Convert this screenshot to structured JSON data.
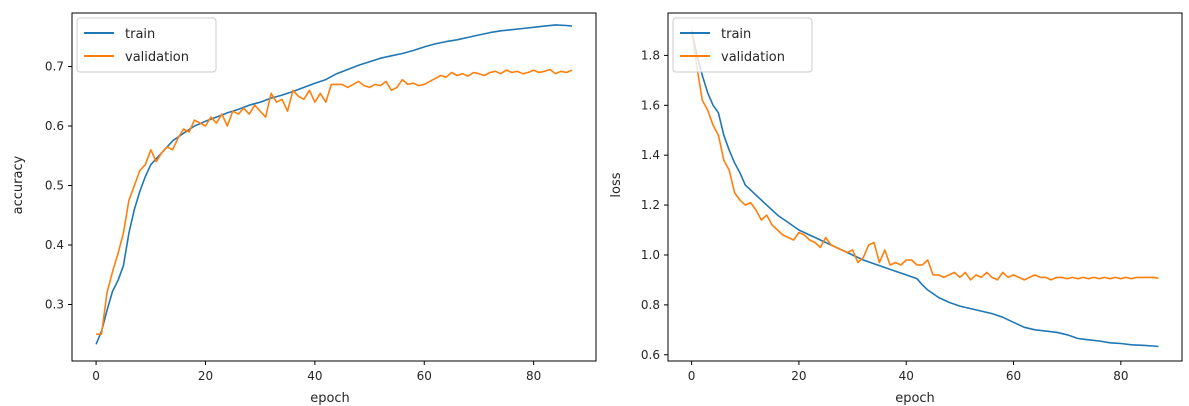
{
  "colors": {
    "train": "#1f77b4",
    "validation": "#ff7f0e"
  },
  "chart_data": [
    {
      "type": "line",
      "xlabel": "epoch",
      "ylabel": "accuracy",
      "xlim": [
        -4.4,
        91.4
      ],
      "ylim": [
        0.205,
        0.79
      ],
      "xticks": [
        0,
        20,
        40,
        60,
        80
      ],
      "yticks": [
        0.3,
        0.4,
        0.5,
        0.6,
        0.7
      ],
      "ytick_labels": [
        "0.3",
        "0.4",
        "0.5",
        "0.6",
        "0.7"
      ],
      "legend_position": "upper left",
      "grid": false,
      "series": [
        {
          "name": "train",
          "x": [
            0,
            1,
            2,
            3,
            4,
            5,
            6,
            7,
            8,
            9,
            10,
            12,
            14,
            16,
            18,
            20,
            22,
            24,
            26,
            28,
            30,
            32,
            34,
            36,
            38,
            40,
            42,
            44,
            46,
            48,
            50,
            52,
            54,
            56,
            58,
            60,
            62,
            64,
            66,
            68,
            70,
            72,
            74,
            76,
            78,
            80,
            82,
            84,
            86,
            87
          ],
          "y": [
            0.233,
            0.255,
            0.29,
            0.322,
            0.34,
            0.365,
            0.42,
            0.46,
            0.49,
            0.515,
            0.535,
            0.555,
            0.575,
            0.588,
            0.6,
            0.608,
            0.615,
            0.622,
            0.628,
            0.635,
            0.64,
            0.647,
            0.652,
            0.658,
            0.665,
            0.672,
            0.678,
            0.688,
            0.695,
            0.702,
            0.708,
            0.714,
            0.718,
            0.722,
            0.727,
            0.733,
            0.738,
            0.742,
            0.745,
            0.749,
            0.753,
            0.757,
            0.76,
            0.762,
            0.764,
            0.766,
            0.768,
            0.77,
            0.769,
            0.768
          ]
        },
        {
          "name": "validation",
          "x": [
            0,
            1,
            2,
            3,
            4,
            5,
            6,
            7,
            8,
            9,
            10,
            11,
            12,
            13,
            14,
            15,
            16,
            17,
            18,
            19,
            20,
            21,
            22,
            23,
            24,
            25,
            26,
            27,
            28,
            29,
            30,
            31,
            32,
            33,
            34,
            35,
            36,
            37,
            38,
            39,
            40,
            41,
            42,
            43,
            44,
            45,
            46,
            47,
            48,
            49,
            50,
            51,
            52,
            53,
            54,
            55,
            56,
            57,
            58,
            59,
            60,
            61,
            62,
            63,
            64,
            65,
            66,
            67,
            68,
            69,
            70,
            71,
            72,
            73,
            74,
            75,
            76,
            77,
            78,
            79,
            80,
            81,
            82,
            83,
            84,
            85,
            86,
            87
          ],
          "y": [
            0.25,
            0.25,
            0.32,
            0.355,
            0.385,
            0.42,
            0.475,
            0.5,
            0.525,
            0.535,
            0.56,
            0.54,
            0.555,
            0.565,
            0.56,
            0.58,
            0.595,
            0.59,
            0.61,
            0.605,
            0.6,
            0.615,
            0.605,
            0.62,
            0.6,
            0.625,
            0.62,
            0.63,
            0.62,
            0.635,
            0.625,
            0.615,
            0.655,
            0.64,
            0.645,
            0.625,
            0.66,
            0.65,
            0.645,
            0.66,
            0.64,
            0.655,
            0.64,
            0.67,
            0.67,
            0.67,
            0.665,
            0.67,
            0.675,
            0.668,
            0.665,
            0.67,
            0.668,
            0.675,
            0.66,
            0.665,
            0.678,
            0.67,
            0.672,
            0.668,
            0.67,
            0.675,
            0.68,
            0.685,
            0.682,
            0.69,
            0.685,
            0.688,
            0.684,
            0.69,
            0.688,
            0.685,
            0.69,
            0.692,
            0.688,
            0.694,
            0.69,
            0.692,
            0.688,
            0.69,
            0.694,
            0.69,
            0.692,
            0.695,
            0.688,
            0.692,
            0.69,
            0.694
          ]
        }
      ]
    },
    {
      "type": "line",
      "xlabel": "epoch",
      "ylabel": "loss",
      "xlim": [
        -4.4,
        91.4
      ],
      "ylim": [
        0.575,
        1.97
      ],
      "xticks": [
        0,
        20,
        40,
        60,
        80
      ],
      "yticks": [
        0.6,
        0.8,
        1.0,
        1.2,
        1.4,
        1.6,
        1.8
      ],
      "ytick_labels": [
        "0.6",
        "0.8",
        "1.0",
        "1.2",
        "1.4",
        "1.6",
        "1.8"
      ],
      "legend_position": "upper left",
      "grid": false,
      "series": [
        {
          "name": "train",
          "x": [
            0,
            1,
            2,
            3,
            4,
            5,
            6,
            7,
            8,
            9,
            10,
            12,
            14,
            16,
            18,
            20,
            22,
            24,
            26,
            28,
            30,
            32,
            34,
            36,
            38,
            40,
            42,
            43,
            44,
            46,
            48,
            50,
            52,
            54,
            56,
            58,
            60,
            62,
            64,
            66,
            68,
            70,
            72,
            74,
            76,
            78,
            80,
            82,
            84,
            86,
            87
          ],
          "y": [
            1.9,
            1.8,
            1.72,
            1.65,
            1.6,
            1.57,
            1.48,
            1.42,
            1.37,
            1.33,
            1.28,
            1.24,
            1.2,
            1.16,
            1.13,
            1.1,
            1.08,
            1.06,
            1.04,
            1.02,
            1.0,
            0.98,
            0.965,
            0.95,
            0.935,
            0.92,
            0.905,
            0.88,
            0.86,
            0.83,
            0.81,
            0.795,
            0.785,
            0.775,
            0.765,
            0.75,
            0.73,
            0.71,
            0.7,
            0.695,
            0.69,
            0.68,
            0.665,
            0.66,
            0.655,
            0.648,
            0.645,
            0.64,
            0.638,
            0.635,
            0.633
          ]
        },
        {
          "name": "validation",
          "x": [
            0,
            1,
            2,
            3,
            4,
            5,
            6,
            7,
            8,
            9,
            10,
            11,
            12,
            13,
            14,
            15,
            16,
            17,
            18,
            19,
            20,
            21,
            22,
            23,
            24,
            25,
            26,
            27,
            28,
            29,
            30,
            31,
            32,
            33,
            34,
            35,
            36,
            37,
            38,
            39,
            40,
            41,
            42,
            43,
            44,
            45,
            46,
            47,
            48,
            49,
            50,
            51,
            52,
            53,
            54,
            55,
            56,
            57,
            58,
            59,
            60,
            61,
            62,
            63,
            64,
            65,
            66,
            67,
            68,
            69,
            70,
            71,
            72,
            73,
            74,
            75,
            76,
            77,
            78,
            79,
            80,
            81,
            82,
            83,
            84,
            85,
            86,
            87
          ],
          "y": [
            1.9,
            1.75,
            1.62,
            1.58,
            1.52,
            1.48,
            1.38,
            1.34,
            1.25,
            1.22,
            1.2,
            1.21,
            1.18,
            1.14,
            1.16,
            1.12,
            1.1,
            1.08,
            1.07,
            1.06,
            1.09,
            1.08,
            1.06,
            1.05,
            1.03,
            1.07,
            1.04,
            1.03,
            1.02,
            1.01,
            1.02,
            0.97,
            0.99,
            1.04,
            1.05,
            0.97,
            1.02,
            0.96,
            0.97,
            0.96,
            0.98,
            0.98,
            0.96,
            0.96,
            0.98,
            0.92,
            0.92,
            0.91,
            0.92,
            0.93,
            0.91,
            0.93,
            0.9,
            0.92,
            0.91,
            0.93,
            0.91,
            0.9,
            0.93,
            0.91,
            0.92,
            0.91,
            0.9,
            0.91,
            0.92,
            0.91,
            0.91,
            0.9,
            0.91,
            0.91,
            0.905,
            0.91,
            0.905,
            0.91,
            0.905,
            0.91,
            0.905,
            0.91,
            0.905,
            0.91,
            0.905,
            0.91,
            0.905,
            0.91,
            0.91,
            0.91,
            0.91,
            0.907
          ]
        }
      ]
    }
  ]
}
